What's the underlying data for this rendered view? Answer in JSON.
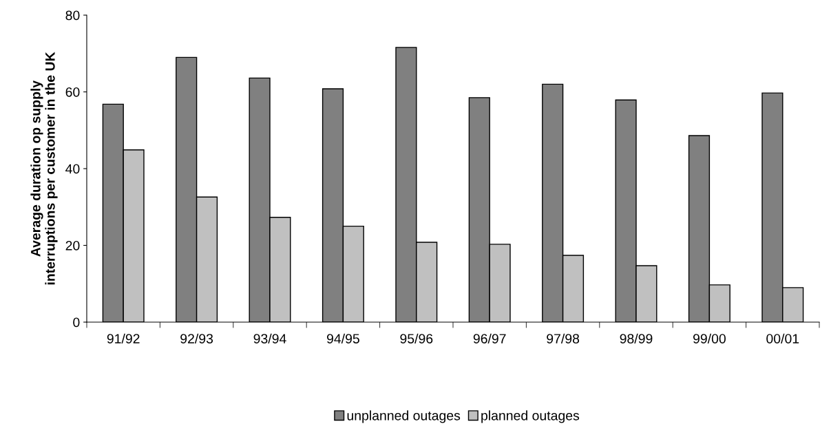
{
  "chart_data": {
    "type": "bar",
    "ylabel": "Average duration op supply\ninterruptions per customer in the UK",
    "categories": [
      "91/92",
      "92/93",
      "93/94",
      "94/95",
      "95/96",
      "96/97",
      "97/98",
      "98/99",
      "99/00",
      "00/01"
    ],
    "series": [
      {
        "name": "unplanned outages",
        "color": "#808080",
        "values": [
          56.8,
          69.0,
          63.6,
          60.8,
          71.6,
          58.5,
          62.0,
          57.9,
          48.6,
          59.7
        ]
      },
      {
        "name": "planned outages",
        "color": "#c0c0c0",
        "values": [
          44.9,
          32.6,
          27.3,
          25.0,
          20.8,
          20.3,
          17.4,
          14.7,
          9.7,
          9.0
        ]
      }
    ],
    "ylim": [
      0,
      80
    ],
    "yticks": [
      0,
      20,
      40,
      60,
      80
    ],
    "grid": false,
    "legend": "bottom"
  }
}
